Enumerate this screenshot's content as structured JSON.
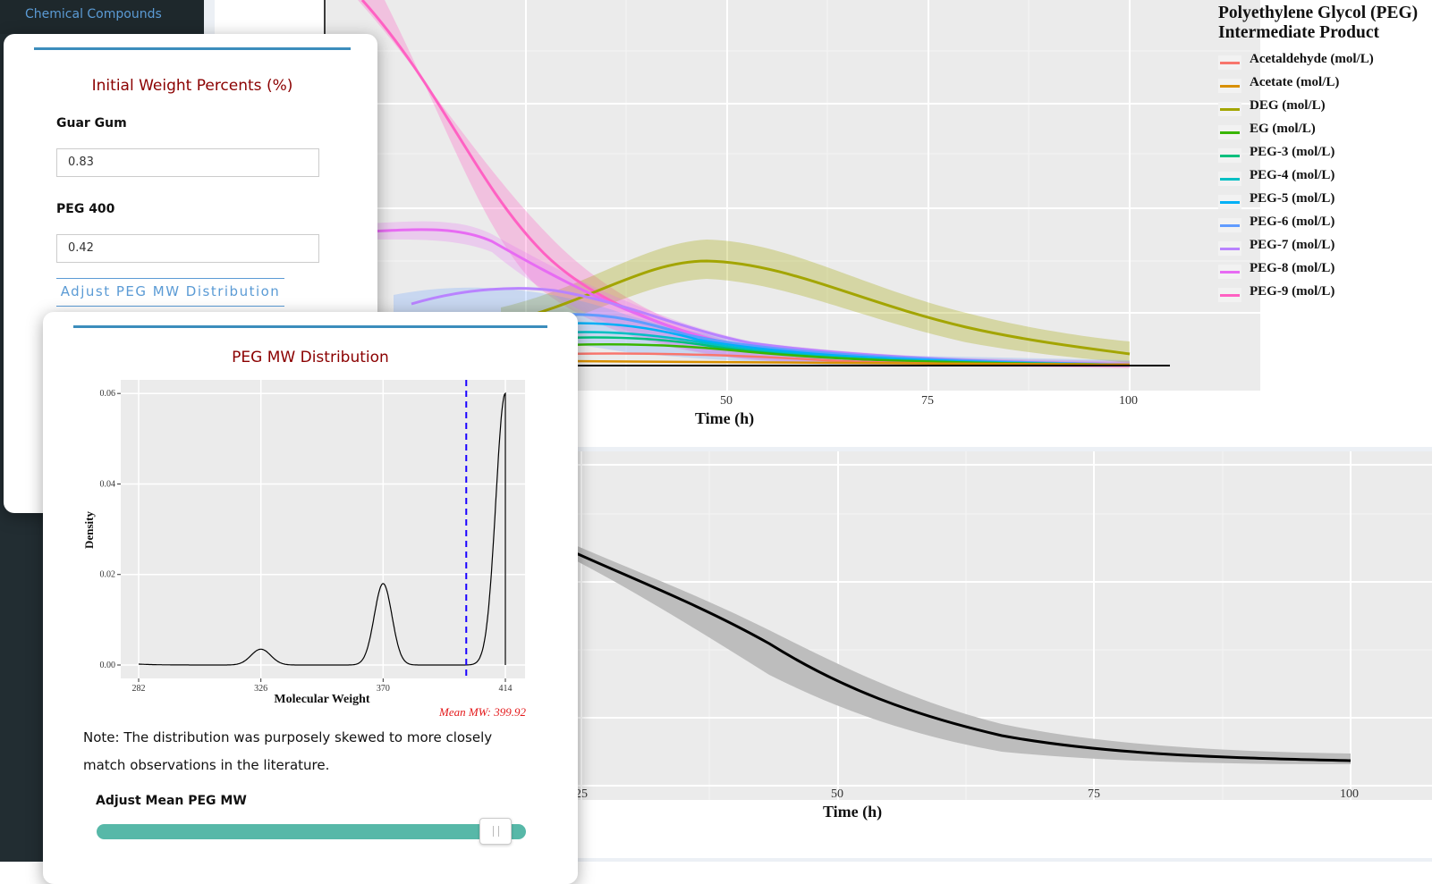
{
  "sidebar": {
    "link_label": "Chemical Compounds"
  },
  "top_plot": {
    "legend_title_line1": "Polyethylene Glycol (PEG)",
    "legend_title_line2": "Intermediate Product",
    "legend": [
      {
        "label": "Acetaldehyde (mol/L)",
        "color": "#f8766d"
      },
      {
        "label": "Acetate (mol/L)",
        "color": "#d89000"
      },
      {
        "label": "DEG (mol/L)",
        "color": "#a3a500"
      },
      {
        "label": "EG (mol/L)",
        "color": "#39b600"
      },
      {
        "label": "PEG-3 (mol/L)",
        "color": "#00bf7d"
      },
      {
        "label": "PEG-4 (mol/L)",
        "color": "#00bfc4"
      },
      {
        "label": "PEG-5 (mol/L)",
        "color": "#00b0f6"
      },
      {
        "label": "PEG-6 (mol/L)",
        "color": "#619cff"
      },
      {
        "label": "PEG-7 (mol/L)",
        "color": "#b983ff"
      },
      {
        "label": "PEG-8 (mol/L)",
        "color": "#e76bf3"
      },
      {
        "label": "PEG-9 (mol/L)",
        "color": "#ff61c3"
      }
    ],
    "x_ticks": [
      "50",
      "75",
      "100"
    ],
    "x_title": "Time (h)"
  },
  "bottom_plot": {
    "x_ticks": [
      "25",
      "50",
      "75",
      "100"
    ],
    "x_title": "Time (h)"
  },
  "weights_panel": {
    "title": "Initial Weight Percents (%)",
    "guar_label": "Guar Gum",
    "guar_value": "0.83",
    "peg_label": "PEG 400",
    "peg_value": "0.42",
    "adjust_link": "Adjust PEG MW Distribution"
  },
  "mw_panel": {
    "title": "PEG MW Distribution",
    "note": "Note: The distribution was purposely skewed to more closely match observations in the literature.",
    "slider_label": "Adjust Mean PEG MW",
    "slider_value_fraction": 0.96,
    "mean_label": "Mean MW: 399.92"
  },
  "chart_data": [
    {
      "type": "line",
      "title": "PEG MW Distribution",
      "xlabel": "Molecular Weight",
      "ylabel": "Density",
      "x_ticks": [
        "282",
        "326",
        "370",
        "414"
      ],
      "y_ticks": [
        "0.00",
        "0.02",
        "0.04",
        "0.06"
      ],
      "xlim": [
        282,
        414
      ],
      "ylim": [
        0,
        0.063
      ],
      "mean_line_x": 399.92,
      "peaks": [
        {
          "x": 326,
          "density": 0.0035
        },
        {
          "x": 370,
          "density": 0.018
        },
        {
          "x": 414,
          "density": 0.06
        }
      ],
      "annotation": "Mean MW: 399.92"
    }
  ]
}
